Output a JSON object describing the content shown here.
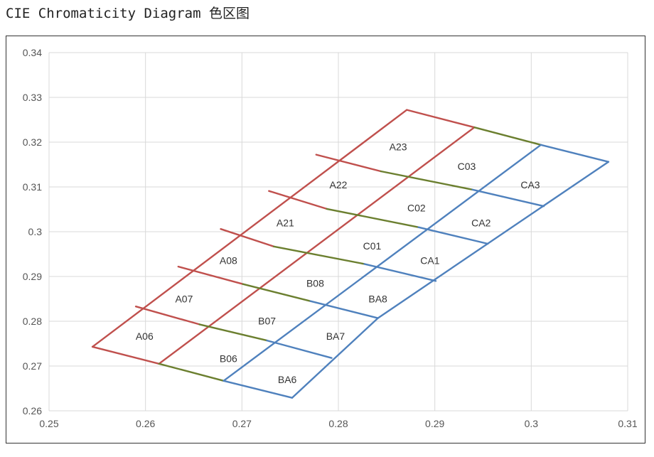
{
  "title": "CIE Chromaticity Diagram 色区图",
  "colors": {
    "A": "#c0504d",
    "boundary": "#6b7f2f",
    "B": "#4f81bd",
    "grid": "#d9d9d9"
  },
  "chart_data": {
    "type": "line",
    "title": "CIE Chromaticity Diagram 色区图",
    "xlabel": "",
    "ylabel": "",
    "xlim": [
      0.25,
      0.31
    ],
    "ylim": [
      0.26,
      0.34
    ],
    "x_ticks": [
      "0.25",
      "0.26",
      "0.27",
      "0.28",
      "0.29",
      "0.3",
      "0.31"
    ],
    "y_ticks": [
      "0.26",
      "0.27",
      "0.28",
      "0.29",
      "0.3",
      "0.31",
      "0.32",
      "0.33",
      "0.34"
    ],
    "grid": true,
    "legend": "none",
    "series": [
      {
        "group": "A",
        "points": [
          [
            0.2545,
            0.2743
          ],
          [
            0.2871,
            0.3272
          ]
        ]
      },
      {
        "group": "A",
        "points": [
          [
            0.2871,
            0.3272
          ],
          [
            0.2941,
            0.3233
          ]
        ]
      },
      {
        "group": "A",
        "points": [
          [
            0.2545,
            0.2743
          ],
          [
            0.2614,
            0.2705
          ]
        ]
      },
      {
        "group": "A",
        "points": [
          [
            0.2614,
            0.2705
          ],
          [
            0.2941,
            0.3233
          ]
        ]
      },
      {
        "group": "A",
        "points": [
          [
            0.259,
            0.2833
          ],
          [
            0.2656,
            0.2793
          ]
        ]
      },
      {
        "group": "A",
        "points": [
          [
            0.2634,
            0.2922
          ],
          [
            0.2701,
            0.2883
          ]
        ]
      },
      {
        "group": "A",
        "points": [
          [
            0.2678,
            0.3006
          ],
          [
            0.2733,
            0.2967
          ]
        ]
      },
      {
        "group": "A",
        "points": [
          [
            0.2728,
            0.3091
          ],
          [
            0.2788,
            0.3051
          ]
        ]
      },
      {
        "group": "A",
        "points": [
          [
            0.2777,
            0.3172
          ],
          [
            0.2844,
            0.3135
          ]
        ]
      },
      {
        "group": "boundary",
        "points": [
          [
            0.2614,
            0.2705
          ],
          [
            0.2681,
            0.2667
          ]
        ]
      },
      {
        "group": "boundary",
        "points": [
          [
            0.2656,
            0.2793
          ],
          [
            0.2726,
            0.2757
          ]
        ]
      },
      {
        "group": "boundary",
        "points": [
          [
            0.2701,
            0.2883
          ],
          [
            0.2771,
            0.2845
          ]
        ]
      },
      {
        "group": "boundary",
        "points": [
          [
            0.2733,
            0.2967
          ],
          [
            0.2827,
            0.2928
          ]
        ]
      },
      {
        "group": "boundary",
        "points": [
          [
            0.2788,
            0.3051
          ],
          [
            0.2883,
            0.301
          ]
        ]
      },
      {
        "group": "boundary",
        "points": [
          [
            0.2844,
            0.3135
          ],
          [
            0.2939,
            0.3094
          ]
        ]
      },
      {
        "group": "boundary",
        "points": [
          [
            0.2941,
            0.3233
          ],
          [
            0.301,
            0.3194
          ]
        ]
      },
      {
        "group": "B",
        "points": [
          [
            0.2681,
            0.2667
          ],
          [
            0.301,
            0.3194
          ]
        ]
      },
      {
        "group": "B",
        "points": [
          [
            0.301,
            0.3194
          ],
          [
            0.308,
            0.3156
          ]
        ]
      },
      {
        "group": "B",
        "points": [
          [
            0.308,
            0.3156
          ],
          [
            0.2841,
            0.2807
          ],
          [
            0.2752,
            0.2629
          ]
        ]
      },
      {
        "group": "B",
        "points": [
          [
            0.2681,
            0.2667
          ],
          [
            0.2752,
            0.2629
          ]
        ]
      },
      {
        "group": "B",
        "points": [
          [
            0.2726,
            0.2757
          ],
          [
            0.2793,
            0.2718
          ]
        ]
      },
      {
        "group": "B",
        "points": [
          [
            0.2771,
            0.2845
          ],
          [
            0.2841,
            0.2807
          ]
        ]
      },
      {
        "group": "B",
        "points": [
          [
            0.2827,
            0.2928
          ],
          [
            0.2901,
            0.289
          ]
        ]
      },
      {
        "group": "B",
        "points": [
          [
            0.2883,
            0.301
          ],
          [
            0.2955,
            0.2973
          ]
        ]
      },
      {
        "group": "B",
        "points": [
          [
            0.2939,
            0.3094
          ],
          [
            0.3013,
            0.3057
          ]
        ]
      }
    ],
    "labels": [
      {
        "text": "A06",
        "x": 0.2599,
        "y": 0.2767
      },
      {
        "text": "A07",
        "x": 0.264,
        "y": 0.285
      },
      {
        "text": "A08",
        "x": 0.2686,
        "y": 0.2936
      },
      {
        "text": "A21",
        "x": 0.2745,
        "y": 0.302
      },
      {
        "text": "A22",
        "x": 0.28,
        "y": 0.3105
      },
      {
        "text": "A23",
        "x": 0.2862,
        "y": 0.319
      },
      {
        "text": "B06",
        "x": 0.2686,
        "y": 0.2717
      },
      {
        "text": "B07",
        "x": 0.2726,
        "y": 0.2801
      },
      {
        "text": "B08",
        "x": 0.2776,
        "y": 0.2885
      },
      {
        "text": "C01",
        "x": 0.2835,
        "y": 0.2968
      },
      {
        "text": "C02",
        "x": 0.2881,
        "y": 0.3053
      },
      {
        "text": "C03",
        "x": 0.2933,
        "y": 0.3146
      },
      {
        "text": "BA6",
        "x": 0.2747,
        "y": 0.267
      },
      {
        "text": "BA7",
        "x": 0.2797,
        "y": 0.2767
      },
      {
        "text": "BA8",
        "x": 0.2841,
        "y": 0.285
      },
      {
        "text": "CA1",
        "x": 0.2895,
        "y": 0.2936
      },
      {
        "text": "CA2",
        "x": 0.2948,
        "y": 0.302
      },
      {
        "text": "CA3",
        "x": 0.2999,
        "y": 0.3105
      }
    ]
  }
}
